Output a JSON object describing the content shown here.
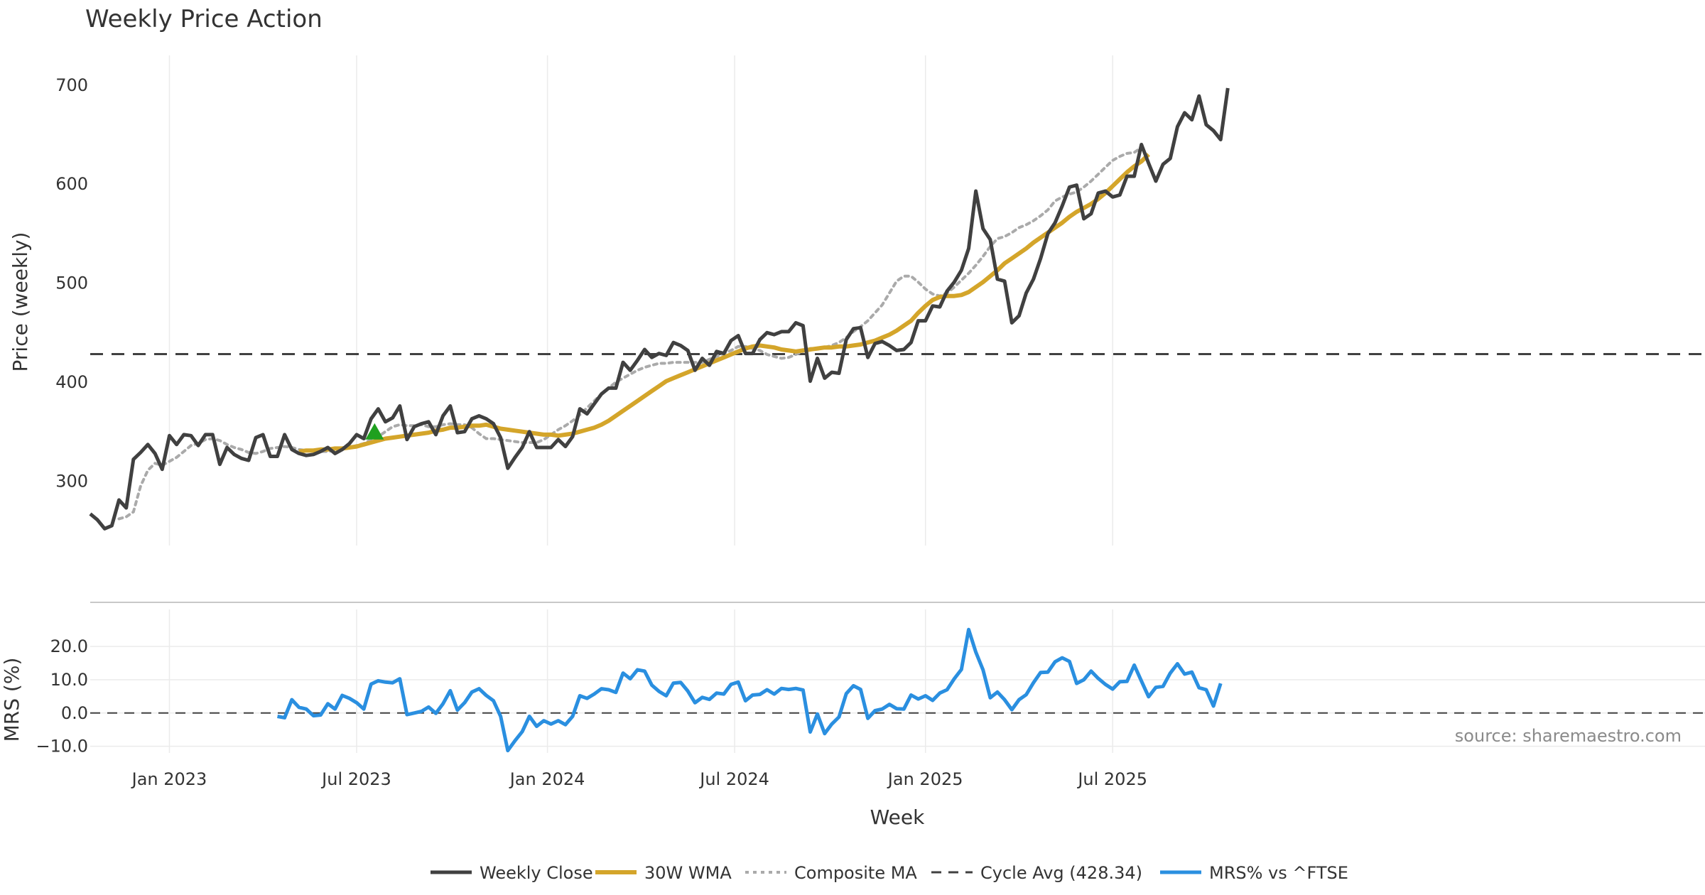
{
  "chart_data": {
    "type": "line",
    "title": "Weekly Price Action",
    "source": "source: sharemaestro.com",
    "colors": {
      "close": "#404040",
      "wma": "#D4A52A",
      "composite": "#aaaaaa",
      "cycle": "#404040",
      "mrs": "#2a8fe0",
      "marker": "#1fa01f"
    },
    "x_ticks": [
      {
        "label": "Jan 2023",
        "week": 11
      },
      {
        "label": "Jul 2023",
        "week": 37
      },
      {
        "label": "Jan 2024",
        "week": 63.5
      },
      {
        "label": "Jul 2024",
        "week": 89.5
      },
      {
        "label": "Jan 2025",
        "week": 116
      },
      {
        "label": "Jul 2025",
        "week": 142
      }
    ],
    "xlabel": "Week",
    "price_panel": {
      "ylabel": "Price (weekly)",
      "ylim": [
        235,
        730
      ],
      "yticks": [
        {
          "value": 300,
          "label": "300"
        },
        {
          "value": 400,
          "label": "400"
        },
        {
          "value": 500,
          "label": "500"
        },
        {
          "value": 600,
          "label": "600"
        },
        {
          "value": 700,
          "label": "700"
        }
      ],
      "cycle_avg": 428.34,
      "buy_marker": {
        "week": 39.5,
        "value": 350
      },
      "series": [
        {
          "key": "close",
          "name": "Weekly Close",
          "start": 0,
          "values": [
            267,
            261,
            252,
            255,
            281,
            273,
            322,
            329,
            337,
            328,
            312,
            346,
            337,
            347,
            346,
            336,
            347,
            347,
            317,
            334,
            327,
            323,
            321,
            344,
            347,
            325,
            325,
            347,
            332,
            328,
            326,
            327,
            330,
            334,
            328,
            332,
            338,
            347,
            343,
            363,
            373,
            360,
            364,
            376,
            342,
            355,
            358,
            360,
            347,
            366,
            376,
            349,
            350,
            363,
            366,
            363,
            358,
            344,
            313,
            324,
            334,
            350,
            334,
            334,
            334,
            342,
            335,
            345,
            373,
            368,
            378,
            388,
            394,
            394,
            420,
            412,
            422,
            433,
            425,
            429,
            427,
            440,
            437,
            432,
            412,
            424,
            417,
            431,
            429,
            442,
            447,
            429,
            429,
            443,
            450,
            448,
            451,
            451,
            460,
            457,
            401,
            424,
            404,
            410,
            409,
            443,
            454,
            455,
            425,
            439,
            441,
            437,
            432,
            433,
            440,
            462,
            462,
            477,
            476,
            492,
            501,
            513,
            535,
            593,
            555,
            544,
            504,
            502,
            460,
            467,
            490,
            504,
            525,
            550,
            561,
            578,
            597,
            599,
            565,
            570,
            591,
            593,
            587,
            589,
            608,
            608,
            640,
            621,
            603,
            620,
            626,
            658,
            672,
            665,
            689,
            660,
            654,
            645,
            697
          ]
        },
        {
          "key": "wma",
          "name": "30W WMA",
          "start": 29,
          "values": [
            330,
            331,
            331,
            332,
            332,
            333,
            333,
            334,
            335,
            337,
            339,
            341,
            343,
            344,
            345,
            346,
            347,
            348,
            349,
            351,
            352,
            354,
            354,
            355,
            356,
            356,
            357,
            355,
            353,
            352,
            351,
            350,
            349,
            348,
            347,
            347,
            346,
            347,
            348,
            350,
            352,
            354,
            357,
            361,
            366,
            371,
            376,
            381,
            386,
            391,
            396,
            401,
            404,
            407,
            410,
            413,
            416,
            419,
            422,
            425,
            428,
            431,
            434,
            436,
            437,
            436,
            435,
            433,
            432,
            431,
            432,
            433,
            434,
            435,
            435,
            436,
            436,
            437,
            438,
            440,
            442,
            445,
            448,
            452,
            457,
            462,
            470,
            477,
            483,
            486,
            487,
            487,
            488,
            491,
            496,
            501,
            507,
            513,
            520,
            525,
            530,
            535,
            541,
            546,
            551,
            556,
            561,
            567,
            572,
            576,
            580,
            585,
            591,
            598,
            605,
            612,
            618,
            623,
            630
          ]
        },
        {
          "key": "composite",
          "name": "Composite MA",
          "start": 4,
          "values": [
            262,
            264,
            269,
            295,
            311,
            318,
            316,
            320,
            324,
            330,
            336,
            338,
            342,
            343,
            341,
            337,
            334,
            332,
            329,
            328,
            330,
            333,
            334,
            335,
            334,
            332,
            331,
            331,
            330,
            330,
            331,
            333,
            334,
            336,
            338,
            342,
            345,
            350,
            355,
            357,
            356,
            356,
            357,
            355,
            355,
            357,
            358,
            357,
            357,
            354,
            348,
            343,
            343,
            342,
            341,
            340,
            339,
            339,
            339,
            342,
            347,
            352,
            356,
            361,
            367,
            374,
            381,
            388,
            394,
            400,
            404,
            408,
            412,
            415,
            417,
            419,
            419,
            420,
            420,
            420,
            420,
            420,
            423,
            426,
            429,
            432,
            436,
            436,
            434,
            432,
            428,
            426,
            424,
            425,
            428,
            431,
            434,
            434,
            435,
            437,
            440,
            445,
            451,
            456,
            462,
            470,
            478,
            490,
            502,
            507,
            507,
            501,
            494,
            489,
            487,
            490,
            496,
            503,
            510,
            518,
            527,
            537,
            545,
            547,
            551,
            556,
            559,
            563,
            568,
            574,
            583,
            587,
            590,
            592,
            597,
            603,
            610,
            617,
            624,
            628,
            631,
            632,
            637
          ]
        }
      ]
    },
    "mrs_panel": {
      "ylabel": "MRS (%)",
      "ylim": [
        -12,
        29
      ],
      "yticks": [
        {
          "value": -10,
          "label": "−10.0"
        },
        {
          "value": 0,
          "label": "0.0"
        },
        {
          "value": 10,
          "label": "10.0"
        },
        {
          "value": 20,
          "label": "20.0"
        }
      ],
      "series": {
        "key": "mrs",
        "name": "MRS% vs ^FTSE",
        "start": 26,
        "values": [
          -1,
          -1.4,
          4,
          1.7,
          1.2,
          -0.8,
          -0.6,
          2.8,
          1.2,
          5.3,
          4.4,
          3.1,
          1.2,
          8.7,
          9.7,
          9.3,
          9.1,
          10.3,
          -0.5,
          0,
          0.5,
          1.8,
          -0.1,
          2.8,
          6.7,
          0.9,
          3.1,
          6.3,
          7.3,
          5.3,
          3.7,
          -1,
          -11.3,
          -8.3,
          -5.6,
          -1,
          -4,
          -2.3,
          -3.3,
          -2.3,
          -3.5,
          -1,
          5.2,
          4.4,
          5.7,
          7.3,
          7,
          6.2,
          12,
          10.3,
          13,
          12.6,
          8.4,
          6.5,
          5.2,
          9,
          9.2,
          6.6,
          3.1,
          4.7,
          4.1,
          6,
          5.7,
          8.6,
          9.3,
          3.7,
          5.4,
          5.6,
          7,
          5.7,
          7.4,
          7.1,
          7.4,
          6.9,
          -5.7,
          -0.3,
          -6.2,
          -3.3,
          -1.2,
          5.8,
          8.2,
          7.1,
          -1.6,
          0.7,
          1.2,
          2.6,
          1.3,
          1.2,
          5.4,
          4.2,
          5.2,
          3.8,
          6,
          7,
          10.3,
          13.1,
          25.1,
          18.3,
          13,
          4.6,
          6.3,
          4,
          1,
          4,
          5.5,
          9.1,
          12.2,
          12.3,
          15.4,
          16.6,
          15.5,
          8.9,
          10,
          12.6,
          10.4,
          8.6,
          7.2,
          9.4,
          9.5,
          14.4,
          9.6,
          4.9,
          7.7,
          8,
          12,
          14.8,
          11.7,
          12.3,
          7.6,
          7,
          2.1,
          8.9
        ]
      }
    },
    "legend": [
      {
        "key": "close",
        "label": "Weekly Close"
      },
      {
        "key": "wma",
        "label": "30W WMA"
      },
      {
        "key": "composite",
        "label": "Composite MA"
      },
      {
        "key": "cycle",
        "label": "Cycle Avg (428.34)"
      },
      {
        "key": "mrs",
        "label": "MRS% vs ^FTSE"
      }
    ]
  }
}
